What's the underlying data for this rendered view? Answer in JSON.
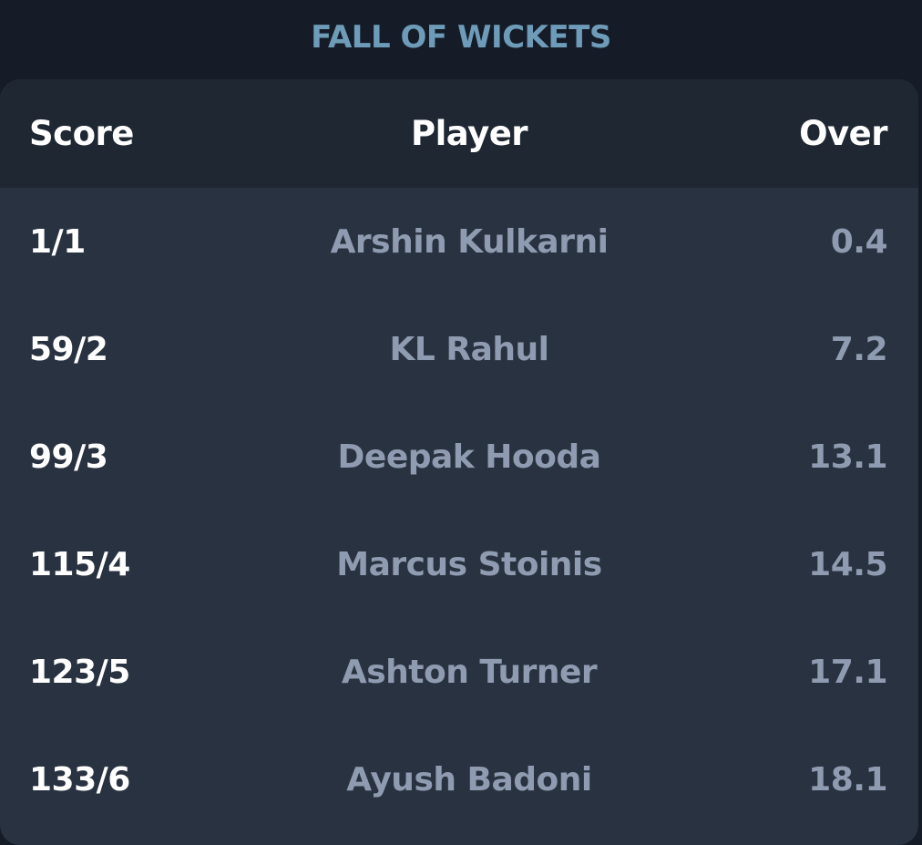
{
  "section": {
    "title": "FALL OF WICKETS"
  },
  "table": {
    "headers": {
      "score": "Score",
      "player": "Player",
      "over": "Over"
    },
    "rows": [
      {
        "score": "1/1",
        "player": "Arshin Kulkarni",
        "over": "0.4"
      },
      {
        "score": "59/2",
        "player": "KL Rahul",
        "over": "7.2"
      },
      {
        "score": "99/3",
        "player": "Deepak Hooda",
        "over": "13.1"
      },
      {
        "score": "115/4",
        "player": "Marcus Stoinis",
        "over": "14.5"
      },
      {
        "score": "123/5",
        "player": "Ashton Turner",
        "over": "17.1"
      },
      {
        "score": "133/6",
        "player": "Ayush Badoni",
        "over": "18.1"
      }
    ]
  },
  "colors": {
    "title": "#6d9bb8",
    "background": "#151c28",
    "card": "#293240",
    "header_row": "#1f2733",
    "muted_text": "#8f9bb0",
    "primary_text": "#ffffff"
  }
}
